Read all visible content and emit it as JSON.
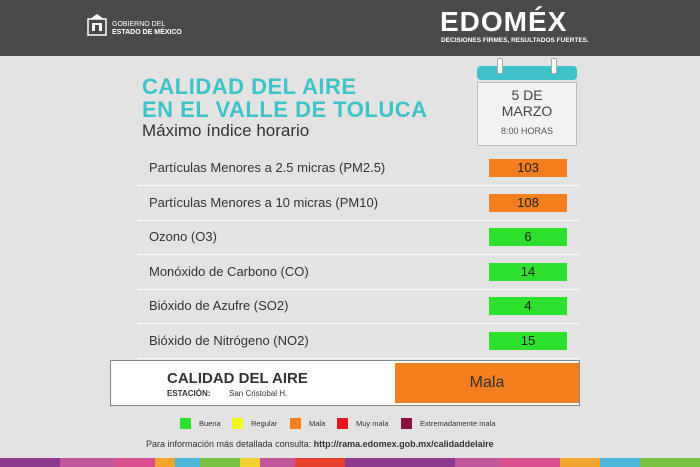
{
  "header": {
    "gov_logo_icon": "state-coat-of-arms-icon",
    "gov_line1": "GOBIERNO DEL",
    "gov_line2": "ESTADO DE MÉXICO",
    "brand": "EDOMÉX",
    "slogan": "DECISIONES FIRMES, RESULTADOS FUERTES."
  },
  "title": {
    "line1": "CALIDAD DEL AIRE",
    "line2": "EN EL VALLE DE TOLUCA",
    "subtitle": "Máximo índice horario"
  },
  "calendar": {
    "icon": "calendar-icon",
    "date_line1": "5 DE",
    "date_line2": "MARZO",
    "time": "8:00 HORAS"
  },
  "pollutants": [
    {
      "label": "Partículas Menores a 2.5 micras (PM2.5)",
      "value": "103",
      "color": "#f57e1e"
    },
    {
      "label": "Partículas Menores a 10 micras (PM10)",
      "value": "108",
      "color": "#f57e1e"
    },
    {
      "label": "Ozono (O3)",
      "value": "6",
      "color": "#2ee02e"
    },
    {
      "label": "Monóxido de Carbono (CO)",
      "value": "14",
      "color": "#2ee02e"
    },
    {
      "label": "Bióxido de Azufre (SO2)",
      "value": "4",
      "color": "#2ee02e"
    },
    {
      "label": "Bióxido de Nitrógeno (NO2)",
      "value": "15",
      "color": "#2ee02e"
    }
  ],
  "summary": {
    "title": "CALIDAD DEL AIRE",
    "station_label": "ESTACIÓN:",
    "station_value": "San Cristobal H.",
    "quality": "Mala",
    "quality_color": "#f57e1e"
  },
  "legend": [
    {
      "label": "Buena",
      "color": "#2ee02e"
    },
    {
      "label": "Regular",
      "color": "#f5f51e"
    },
    {
      "label": "Mala",
      "color": "#f57e1e"
    },
    {
      "label": "Muy mala",
      "color": "#e8141e"
    },
    {
      "label": "Extremadamente mala",
      "color": "#8c1040"
    }
  ],
  "footer": {
    "info_text": "Para información más detallada consulta:",
    "url": "http://rama.edomex.gob.mx/calidaddelaire"
  },
  "colors": {
    "accent_teal": "#3ec3c9",
    "header_bg": "#4a4a4a",
    "strip": [
      "#8b3a8f",
      "#c2569a",
      "#d94e8f",
      "#f2a52e",
      "#4bb6d9",
      "#7cc242",
      "#f2d22e",
      "#c2569a",
      "#e8402e",
      "#8b3a8f"
    ]
  }
}
